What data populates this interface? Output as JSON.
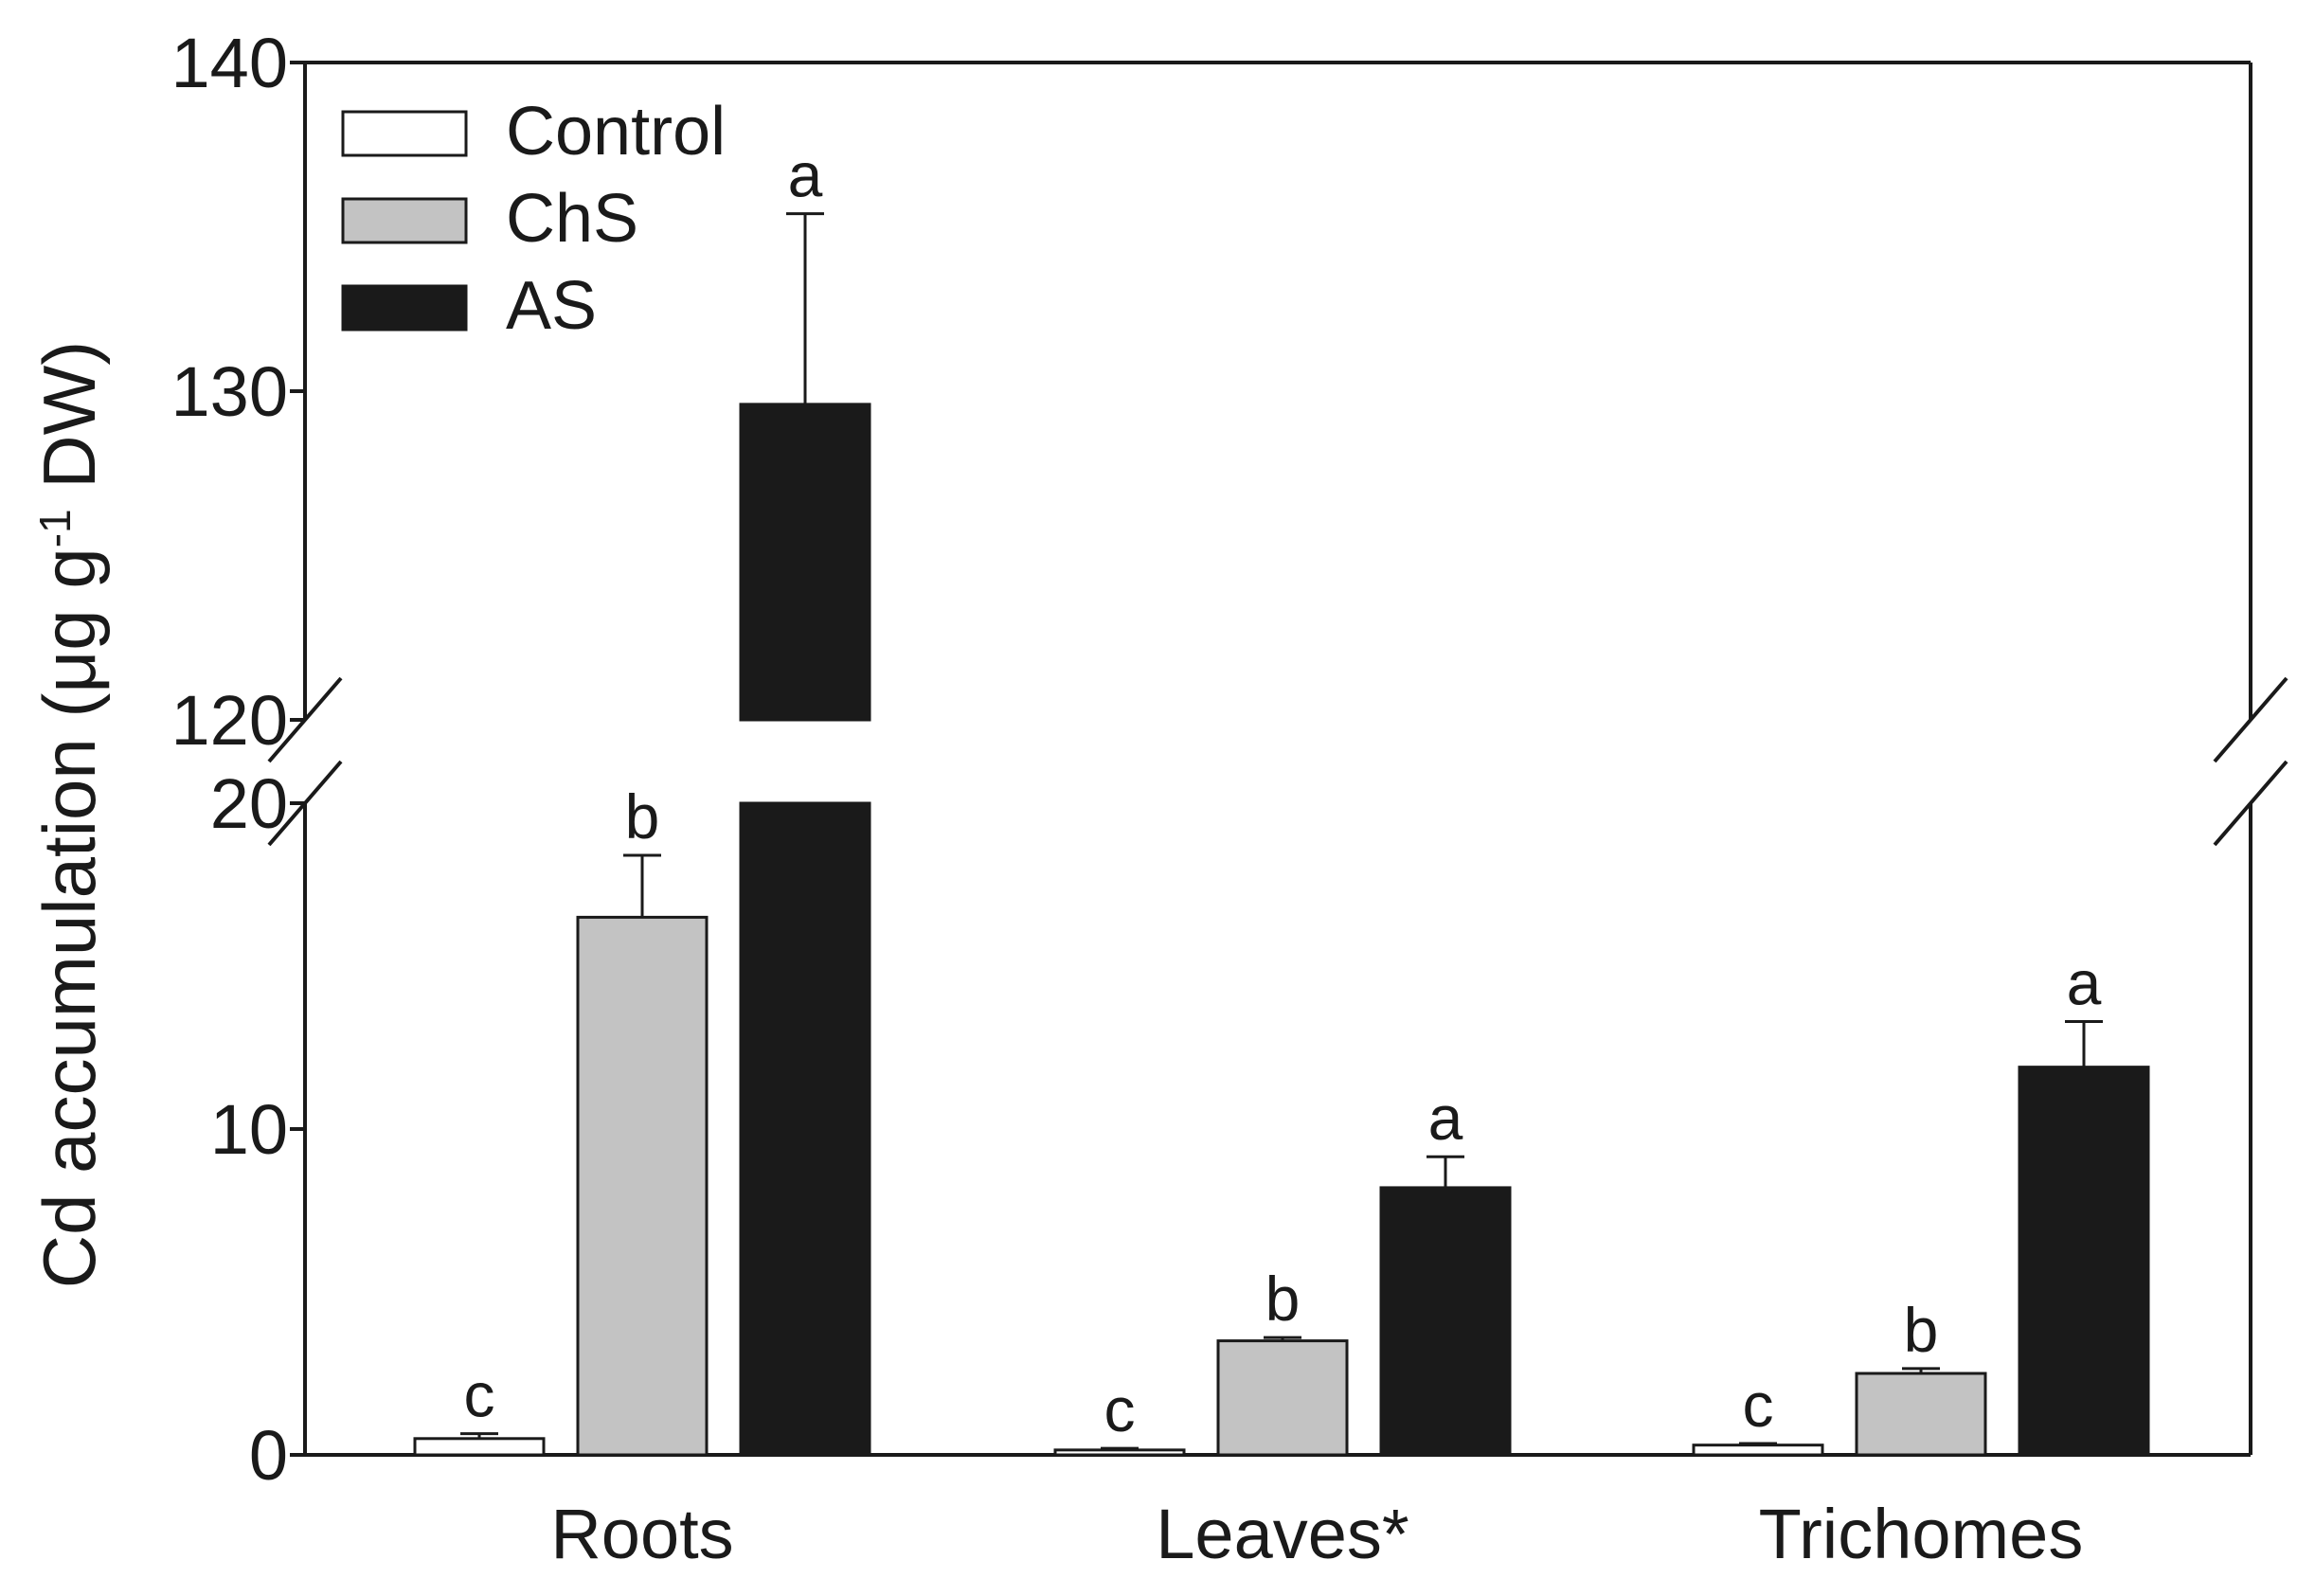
{
  "chart_data": {
    "type": "bar",
    "title": "",
    "xlabel": "",
    "ylabel": "Cd accumulation (μg g",
    "ylabel_superscript": "-1",
    "ylabel_suffix": " DW)",
    "categories": [
      "Roots",
      "Leaves*",
      "Trichomes"
    ],
    "axis_break": {
      "lower_range": [
        0,
        20
      ],
      "upper_range": [
        120,
        140
      ]
    },
    "y_ticks": [
      {
        "value": 0,
        "label": "0"
      },
      {
        "value": 10,
        "label": "10"
      },
      {
        "value": 20,
        "label": "20"
      },
      {
        "value": 120,
        "label": "120"
      },
      {
        "value": 130,
        "label": "130"
      },
      {
        "value": 140,
        "label": "140"
      }
    ],
    "series": [
      {
        "name": "Control",
        "color": "#ffffff",
        "values": [
          0.5,
          0.15,
          0.3
        ],
        "errors": [
          0.15,
          0.05,
          0.05
        ],
        "significance": [
          "c",
          "c",
          "c"
        ]
      },
      {
        "name": "ChS",
        "color": "#c3c3c3",
        "values": [
          16.5,
          3.5,
          2.5
        ],
        "errors": [
          1.9,
          0.1,
          0.15
        ],
        "significance": [
          "b",
          "b",
          "b"
        ]
      },
      {
        "name": "AS",
        "color": "#1a1a1a",
        "values": [
          129.6,
          8.2,
          11.9
        ],
        "errors": [
          5.8,
          0.95,
          1.4
        ],
        "significance": [
          "a",
          "a",
          "a"
        ]
      }
    ],
    "legend_position": "top-left"
  }
}
